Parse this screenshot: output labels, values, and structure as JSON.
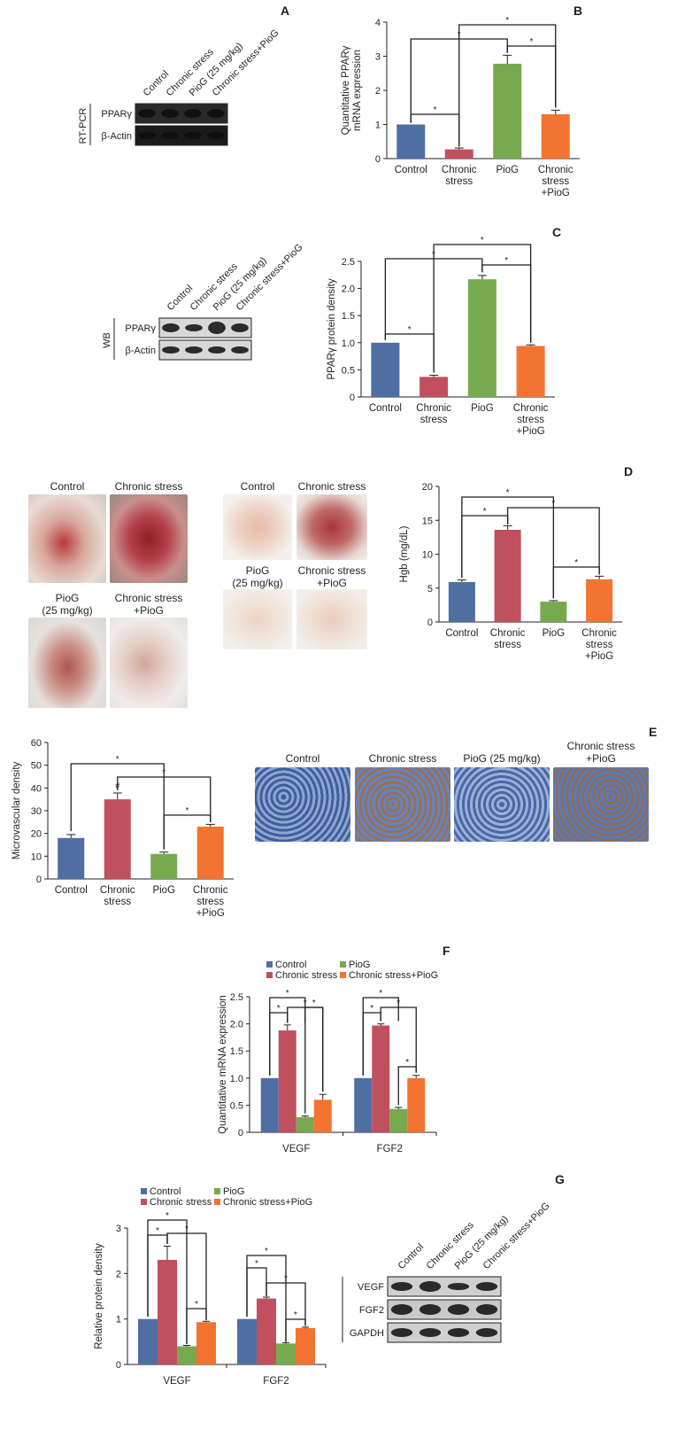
{
  "panels": {
    "A": "A",
    "B": "B",
    "C": "C",
    "D": "D",
    "E": "E",
    "F": "F",
    "G": "G"
  },
  "colors": {
    "control": "#4f6fa3",
    "chronic": "#c0505e",
    "piog": "#77a94e",
    "combo": "#f27430"
  },
  "legend": {
    "control": "Control",
    "chronic": "Chronic stress",
    "piog": "PioG",
    "combo": "Chronic stress+PioG"
  },
  "blots": {
    "A": {
      "side_label": "RT-PCR",
      "lanes": [
        "Control",
        "Chronic stress",
        "PioG (25 mg/kg)",
        "Chronic stress+PioG"
      ],
      "rows": [
        "PPARγ",
        "β-Actin"
      ]
    },
    "C": {
      "side_label": "WB",
      "lanes": [
        "Control",
        "Chronic stress",
        "PioG (25 mg/kg)",
        "Chronic stress+PioG"
      ],
      "rows": [
        "PPARγ",
        "β-Actin"
      ]
    },
    "G": {
      "lanes": [
        "Control",
        "Chronic stress",
        "PioG (25 mg/kg)",
        "Chronic stress+PioG"
      ],
      "rows": [
        "VEGF",
        "FGF2",
        "GAPDH"
      ]
    }
  },
  "photos_D": {
    "left": [
      "Control",
      "Chronic stress",
      "PioG\n(25 mg/kg)",
      "Chronic stress\n+PioG"
    ],
    "right": [
      "Control",
      "Chronic stress",
      "PioG\n(25 mg/kg)",
      "Chronic stress\n+PioG"
    ]
  },
  "histology_E": {
    "labels": [
      "Control",
      "Chronic stress",
      "PioG (25 mg/kg)",
      "Chronic stress\n+PioG"
    ]
  },
  "chart_data": [
    {
      "panel": "B",
      "type": "bar",
      "ylabel": "Quantitative PPARγ\nmRNA expression",
      "ylim": [
        0,
        4
      ],
      "yticks": [
        "0",
        "1",
        "2",
        "3",
        "4"
      ],
      "categories": [
        "Control",
        "Chronic\nstress",
        "PioG",
        "Chronic\nstress\n+PioG"
      ],
      "values": [
        1.0,
        0.27,
        2.78,
        1.3
      ],
      "errors": [
        0.0,
        0.04,
        0.25,
        0.12
      ],
      "significance_marker": "*"
    },
    {
      "panel": "C",
      "type": "bar",
      "ylabel": "PPARγ protein density",
      "ylim": [
        0,
        2.5
      ],
      "yticks": [
        "0",
        "0.5",
        "1.0",
        "1.5",
        "2.0",
        "2.5"
      ],
      "categories": [
        "Control",
        "Chronic\nstress",
        "PioG",
        "Chronic\nstress\n+PioG"
      ],
      "values": [
        1.0,
        0.37,
        2.17,
        0.94
      ],
      "errors": [
        0.0,
        0.03,
        0.07,
        0.02
      ],
      "significance_marker": "*"
    },
    {
      "panel": "D",
      "type": "bar",
      "ylabel": "Hgb (mg/dL)",
      "ylim": [
        0,
        20
      ],
      "yticks": [
        "0",
        "5",
        "10",
        "15",
        "20"
      ],
      "categories": [
        "Control",
        "Chronic\nstress",
        "PioG",
        "Chronic\nstress\n+PioG"
      ],
      "values": [
        5.9,
        13.6,
        3.0,
        6.3
      ],
      "errors": [
        0.3,
        0.6,
        0.15,
        0.45
      ],
      "significance_marker": "*"
    },
    {
      "panel": "E",
      "type": "bar",
      "ylabel": "Microvascular density",
      "ylim": [
        0,
        60
      ],
      "yticks": [
        "0",
        "10",
        "20",
        "30",
        "40",
        "50",
        "60"
      ],
      "categories": [
        "Control",
        "Chronic\nstress",
        "PioG",
        "Chronic\nstress\n+PioG"
      ],
      "values": [
        18,
        35,
        11,
        23
      ],
      "errors": [
        1.5,
        2.8,
        0.8,
        1.0
      ],
      "significance_marker": "*",
      "hash_marker": "#"
    },
    {
      "panel": "F",
      "type": "bar",
      "ylabel": "Quantitative mRNA expression",
      "ylim": [
        0,
        2.5
      ],
      "yticks": [
        "0",
        "0.5",
        "1.0",
        "1.5",
        "2.0",
        "2.5"
      ],
      "categories": [
        "VEGF",
        "FGF2"
      ],
      "series": [
        {
          "name": "Control",
          "values": [
            1.0,
            1.0
          ],
          "errors": [
            0.0,
            0.0
          ]
        },
        {
          "name": "Chronic stress",
          "values": [
            1.88,
            1.97
          ],
          "errors": [
            0.1,
            0.03
          ]
        },
        {
          "name": "PioG",
          "values": [
            0.28,
            0.43
          ],
          "errors": [
            0.02,
            0.03
          ]
        },
        {
          "name": "Chronic stress+PioG",
          "values": [
            0.6,
            1.0
          ],
          "errors": [
            0.1,
            0.05
          ]
        }
      ],
      "significance_marker": "*"
    },
    {
      "panel": "G",
      "type": "bar",
      "ylabel": "Relative protein density",
      "ylim": [
        0,
        3
      ],
      "yticks": [
        "0",
        "1",
        "2",
        "3"
      ],
      "categories": [
        "VEGF",
        "FGF2"
      ],
      "series": [
        {
          "name": "Control",
          "values": [
            1.0,
            1.0
          ],
          "errors": [
            0.0,
            0.0
          ]
        },
        {
          "name": "Chronic stress",
          "values": [
            2.3,
            1.45
          ],
          "errors": [
            0.3,
            0.03
          ]
        },
        {
          "name": "PioG",
          "values": [
            0.4,
            0.46
          ],
          "errors": [
            0.02,
            0.02
          ]
        },
        {
          "name": "Chronic stress+PioG",
          "values": [
            0.93,
            0.8
          ],
          "errors": [
            0.02,
            0.02
          ]
        }
      ],
      "significance_marker": "*"
    }
  ]
}
